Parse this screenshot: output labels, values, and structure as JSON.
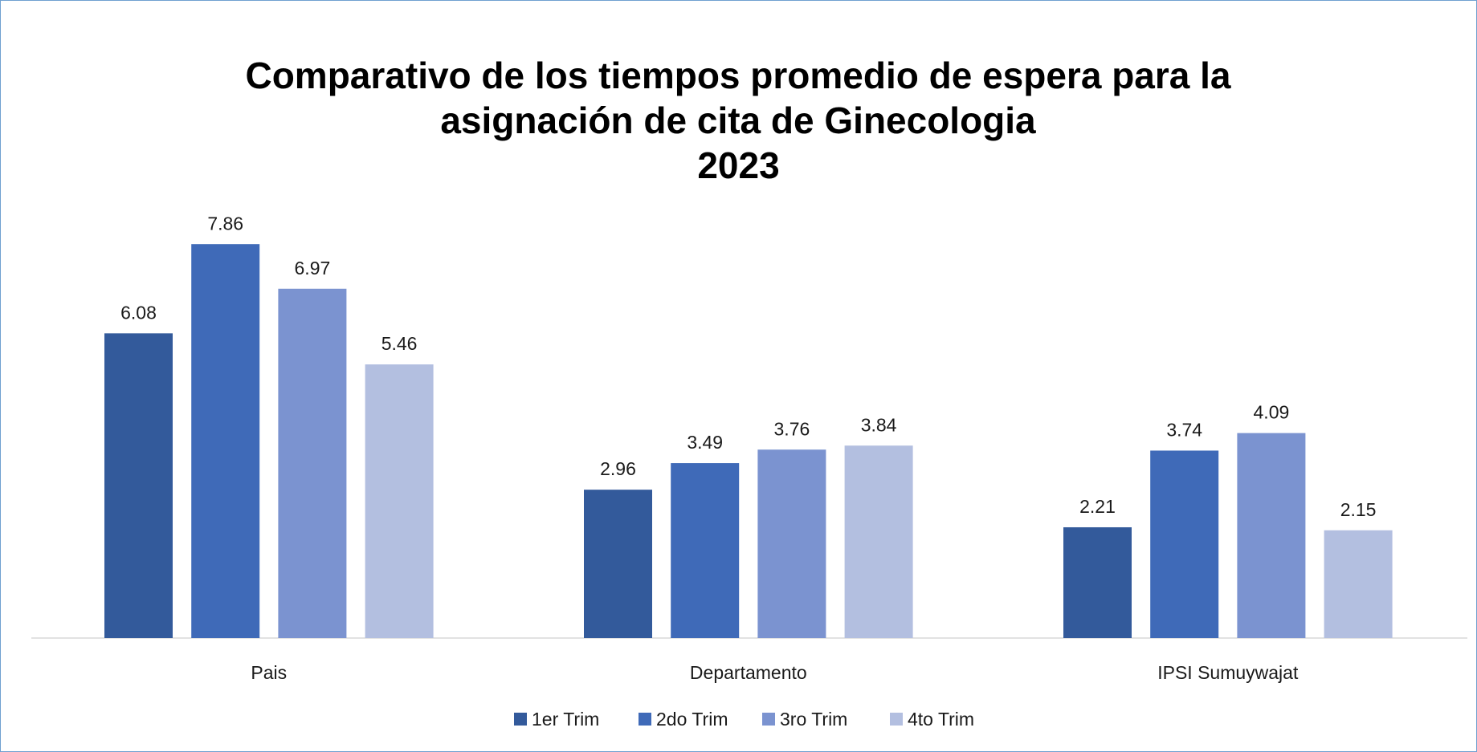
{
  "chart_data": {
    "type": "bar",
    "title": "Comparativo de los tiempos promedio de espera para la asignación de cita de Ginecologia",
    "subtitle": "2023",
    "categories": [
      "Pais",
      "Departamento",
      "IPSI Sumuywajat"
    ],
    "series": [
      {
        "name": "1er Trim",
        "color": "#335a9b",
        "values": [
          6.08,
          2.96,
          2.21
        ]
      },
      {
        "name": "2do Trim",
        "color": "#3f6ab8",
        "values": [
          7.86,
          3.49,
          3.74
        ]
      },
      {
        "name": "3ro Trim",
        "color": "#7b93d0",
        "values": [
          6.97,
          3.76,
          4.09
        ]
      },
      {
        "name": "4to Trim",
        "color": "#b3bfe0",
        "values": [
          5.46,
          3.84,
          2.15
        ]
      }
    ],
    "ylim": [
      0,
      9
    ],
    "legend": "bottom"
  }
}
